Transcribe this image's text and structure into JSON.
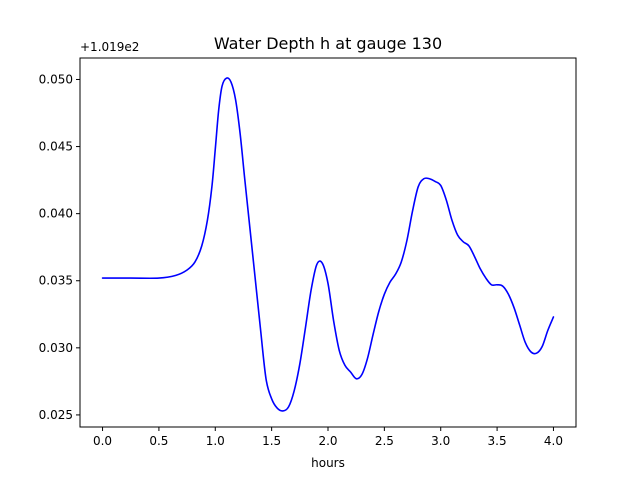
{
  "chart_data": {
    "type": "line",
    "title": "Water Depth h at gauge 130",
    "xlabel": "hours",
    "ylabel": "",
    "y_offset_label": "+1.019e2",
    "xlim": [
      -0.2,
      4.2
    ],
    "ylim": [
      0.0241,
      0.0516
    ],
    "xticks": [
      0.0,
      0.5,
      1.0,
      1.5,
      2.0,
      2.5,
      3.0,
      3.5,
      4.0
    ],
    "xtick_labels": [
      "0.0",
      "0.5",
      "1.0",
      "1.5",
      "2.0",
      "2.5",
      "3.0",
      "3.5",
      "4.0"
    ],
    "yticks": [
      0.025,
      0.03,
      0.035,
      0.04,
      0.045,
      0.05
    ],
    "ytick_labels": [
      "0.025",
      "0.030",
      "0.035",
      "0.040",
      "0.045",
      "0.050"
    ],
    "grid": false,
    "legend": "none",
    "color": "#0000ff",
    "series": [
      {
        "x": [
          0.0,
          0.25,
          0.5,
          0.65,
          0.75,
          0.82,
          0.88,
          0.93,
          0.97,
          1.0,
          1.03,
          1.06,
          1.1,
          1.14,
          1.18,
          1.22,
          1.26,
          1.3,
          1.35,
          1.4,
          1.45,
          1.5,
          1.55,
          1.6,
          1.65,
          1.7,
          1.75,
          1.8,
          1.85,
          1.9,
          1.95,
          2.0,
          2.05,
          2.1,
          2.15,
          2.2,
          2.25,
          2.3,
          2.35,
          2.4,
          2.45,
          2.5,
          2.55,
          2.6,
          2.65,
          2.7,
          2.75,
          2.8,
          2.85,
          2.9,
          2.95,
          3.0,
          3.05,
          3.1,
          3.15,
          3.2,
          3.25,
          3.3,
          3.35,
          3.4,
          3.45,
          3.5,
          3.55,
          3.6,
          3.65,
          3.7,
          3.75,
          3.8,
          3.85,
          3.9,
          3.95,
          4.0
        ],
        "y": [
          0.0352,
          0.0352,
          0.0352,
          0.0354,
          0.0358,
          0.0364,
          0.0376,
          0.0395,
          0.042,
          0.0448,
          0.0477,
          0.0495,
          0.0501,
          0.0498,
          0.0485,
          0.046,
          0.0427,
          0.0395,
          0.0355,
          0.0315,
          0.0277,
          0.0262,
          0.0255,
          0.0253,
          0.0256,
          0.0268,
          0.0288,
          0.0315,
          0.0343,
          0.0362,
          0.0363,
          0.0348,
          0.032,
          0.0298,
          0.0287,
          0.0282,
          0.0277,
          0.028,
          0.0292,
          0.031,
          0.0327,
          0.034,
          0.0349,
          0.0355,
          0.0364,
          0.038,
          0.0402,
          0.042,
          0.0426,
          0.0426,
          0.0424,
          0.0421,
          0.041,
          0.0395,
          0.0384,
          0.0379,
          0.0376,
          0.0368,
          0.0359,
          0.0352,
          0.0347,
          0.0347,
          0.0346,
          0.034,
          0.033,
          0.0317,
          0.0304,
          0.0297,
          0.0296,
          0.0301,
          0.0313,
          0.0323
        ]
      }
    ]
  }
}
